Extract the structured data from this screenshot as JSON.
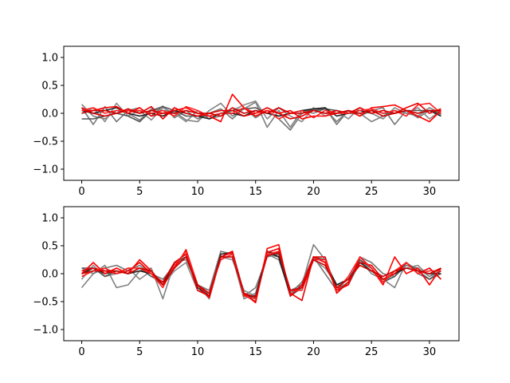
{
  "chart_data": [
    {
      "type": "line",
      "title": "",
      "xlabel": "",
      "ylabel": "",
      "xlim": [
        -1.55,
        32.55
      ],
      "ylim": [
        -1.2,
        1.2
      ],
      "xticks": [
        0,
        5,
        10,
        15,
        20,
        25,
        30
      ],
      "xtick_labels": [
        "0",
        "5",
        "10",
        "15",
        "20",
        "25",
        "30"
      ],
      "yticks": [
        -1.0,
        -0.5,
        0.0,
        0.5,
        1.0
      ],
      "ytick_labels": [
        "−1.0",
        "−0.5",
        "0.0",
        "0.5",
        "1.0"
      ],
      "grid": false,
      "x": [
        0,
        1,
        2,
        3,
        4,
        5,
        6,
        7,
        8,
        9,
        10,
        11,
        12,
        13,
        14,
        15,
        16,
        17,
        18,
        19,
        20,
        21,
        22,
        23,
        24,
        25,
        26,
        27,
        28,
        29,
        30,
        31
      ],
      "series": [
        {
          "color": "#808080",
          "values": [
            0.16,
            -0.05,
            -0.1,
            0.05,
            0.0,
            -0.12,
            0.08,
            0.05,
            0.03,
            -0.12,
            -0.15,
            0.05,
            0.18,
            -0.05,
            0.08,
            0.2,
            -0.25,
            0.05,
            -0.25,
            0.05,
            0.0,
            0.08,
            -0.15,
            0.05,
            0.0,
            -0.15,
            -0.05,
            0.05,
            0.0,
            -0.05,
            0.1,
            0.0
          ]
        },
        {
          "color": "#777777",
          "values": [
            0.1,
            -0.2,
            0.12,
            -0.15,
            0.05,
            0.1,
            -0.05,
            0.13,
            -0.08,
            0.05,
            -0.1,
            0.0,
            0.08,
            -0.1,
            0.1,
            -0.08,
            0.05,
            -0.1,
            -0.3,
            0.0,
            0.05,
            0.1,
            -0.2,
            0.05,
            -0.05,
            0.05,
            0.1,
            -0.2,
            0.05,
            -0.08,
            0.05,
            -0.02
          ]
        },
        {
          "color": "#8a8a8a",
          "values": [
            0.0,
            0.1,
            -0.15,
            0.18,
            -0.05,
            0.05,
            -0.12,
            0.1,
            0.0,
            -0.15,
            0.05,
            -0.1,
            -0.05,
            0.05,
            0.15,
            0.22,
            -0.1,
            0.1,
            -0.05,
            -0.15,
            0.1,
            -0.05,
            0.05,
            -0.1,
            0.1,
            0.0,
            -0.1,
            0.1,
            0.0,
            0.1,
            -0.1,
            0.05
          ]
        },
        {
          "color": "#555555",
          "values": [
            -0.1,
            -0.1,
            -0.05,
            0.0,
            -0.05,
            -0.15,
            0.05,
            0.12,
            0.05,
            -0.05,
            -0.05,
            -0.05,
            0.0,
            0.05,
            0.08,
            0.1,
            0.0,
            -0.05,
            0.0,
            0.05,
            0.05,
            0.08,
            0.05,
            0.0,
            0.0,
            0.05,
            0.0,
            0.0,
            0.05,
            0.05,
            0.05,
            0.0
          ]
        },
        {
          "color": "#222222",
          "values": [
            0.05,
            0.0,
            0.05,
            0.1,
            0.0,
            -0.05,
            0.0,
            -0.05,
            0.05,
            0.0,
            -0.05,
            -0.1,
            0.0,
            0.0,
            -0.05,
            0.05,
            0.0,
            -0.05,
            0.0,
            0.05,
            0.08,
            0.1,
            -0.05,
            0.0,
            0.05,
            0.0,
            0.05,
            0.0,
            0.05,
            0.0,
            0.05,
            -0.05
          ]
        },
        {
          "color": "#ff0000",
          "values": [
            0.05,
            0.05,
            0.1,
            0.12,
            0.0,
            0.1,
            -0.05,
            0.0,
            0.05,
            0.1,
            0.0,
            -0.05,
            -0.15,
            0.34,
            0.1,
            -0.05,
            0.05,
            0.0,
            0.05,
            -0.1,
            -0.05,
            -0.05,
            0.0,
            0.05,
            -0.05,
            0.1,
            0.12,
            0.15,
            0.05,
            -0.05,
            -0.15,
            0.05
          ]
        },
        {
          "color": "#e60000",
          "values": [
            0.1,
            0.0,
            -0.05,
            0.0,
            0.05,
            0.0,
            0.12,
            -0.1,
            0.1,
            0.0,
            -0.05,
            0.0,
            0.05,
            0.05,
            -0.05,
            0.0,
            0.1,
            0.0,
            -0.1,
            -0.05,
            0.05,
            0.0,
            0.05,
            0.0,
            0.1,
            0.0,
            0.05,
            0.0,
            0.1,
            0.18,
            0.0,
            0.08
          ]
        },
        {
          "color": "#ff2020",
          "values": [
            0.05,
            0.1,
            0.0,
            0.05,
            0.05,
            0.05,
            0.0,
            0.05,
            -0.05,
            0.12,
            0.05,
            -0.05,
            0.0,
            0.0,
            0.1,
            0.0,
            0.05,
            -0.1,
            0.0,
            0.05,
            -0.08,
            0.05,
            0.0,
            0.0,
            0.05,
            0.08,
            0.0,
            0.05,
            -0.05,
            0.15,
            0.18,
            0.0
          ]
        },
        {
          "color": "#d00000",
          "values": [
            0.0,
            0.05,
            0.05,
            0.0,
            0.08,
            0.0,
            0.05,
            0.0,
            0.0,
            0.05,
            0.0,
            0.0,
            -0.05,
            0.1,
            0.0,
            0.05,
            0.0,
            0.1,
            0.0,
            0.0,
            0.05,
            0.0,
            0.0,
            0.05,
            0.0,
            0.05,
            -0.05,
            0.0,
            0.05,
            0.0,
            0.05,
            0.05
          ]
        }
      ]
    },
    {
      "type": "line",
      "title": "",
      "xlabel": "",
      "ylabel": "",
      "xlim": [
        -1.55,
        32.55
      ],
      "ylim": [
        -1.2,
        1.2
      ],
      "xticks": [
        0,
        5,
        10,
        15,
        20,
        25,
        30
      ],
      "xtick_labels": [
        "0",
        "5",
        "10",
        "15",
        "20",
        "25",
        "30"
      ],
      "yticks": [
        -1.0,
        -0.5,
        0.0,
        0.5,
        1.0
      ],
      "ytick_labels": [
        "−1.0",
        "−0.5",
        "0.0",
        "0.5",
        "1.0"
      ],
      "grid": false,
      "x": [
        0,
        1,
        2,
        3,
        4,
        5,
        6,
        7,
        8,
        9,
        10,
        11,
        12,
        13,
        14,
        15,
        16,
        17,
        18,
        19,
        20,
        21,
        22,
        23,
        24,
        25,
        26,
        27,
        28,
        29,
        30,
        31
      ],
      "series": [
        {
          "color": "#808080",
          "values": [
            -0.25,
            0.0,
            0.15,
            -0.25,
            -0.2,
            0.05,
            0.1,
            -0.45,
            0.2,
            0.25,
            -0.2,
            -0.45,
            0.3,
            0.3,
            -0.45,
            -0.35,
            0.35,
            0.3,
            -0.3,
            -0.2,
            0.52,
            0.25,
            -0.25,
            -0.1,
            0.25,
            0.0,
            -0.1,
            -0.25,
            0.2,
            0.0,
            -0.1,
            0.0
          ]
        },
        {
          "color": "#777777",
          "values": [
            0.1,
            0.0,
            0.1,
            0.15,
            0.05,
            0.15,
            0.0,
            -0.1,
            0.15,
            0.3,
            -0.2,
            -0.3,
            0.4,
            0.35,
            -0.4,
            -0.25,
            0.3,
            0.35,
            -0.35,
            -0.15,
            0.3,
            0.0,
            -0.3,
            -0.15,
            0.3,
            0.2,
            0.0,
            -0.05,
            0.15,
            0.1,
            -0.05,
            0.05
          ]
        },
        {
          "color": "#8a8a8a",
          "values": [
            -0.1,
            0.15,
            -0.05,
            0.0,
            0.1,
            -0.1,
            0.05,
            -0.2,
            0.05,
            0.2,
            -0.3,
            -0.35,
            0.3,
            0.25,
            -0.3,
            -0.4,
            0.35,
            0.25,
            -0.35,
            -0.25,
            0.25,
            0.1,
            -0.2,
            -0.2,
            0.2,
            0.1,
            -0.15,
            0.0,
            0.1,
            0.15,
            -0.05,
            0.1
          ]
        },
        {
          "color": "#555555",
          "values": [
            0.1,
            0.1,
            -0.05,
            0.05,
            0.0,
            0.1,
            -0.05,
            -0.15,
            0.2,
            0.3,
            -0.2,
            -0.4,
            0.3,
            0.4,
            -0.35,
            -0.45,
            0.4,
            0.35,
            -0.4,
            -0.25,
            0.3,
            0.25,
            -0.25,
            -0.2,
            0.25,
            0.1,
            -0.15,
            -0.05,
            0.2,
            0.05,
            -0.1,
            0.05
          ]
        },
        {
          "color": "#222222",
          "values": [
            0.0,
            0.1,
            0.0,
            0.05,
            0.0,
            0.05,
            0.0,
            -0.2,
            0.2,
            0.35,
            -0.25,
            -0.4,
            0.35,
            0.38,
            -0.4,
            -0.4,
            0.4,
            0.3,
            -0.4,
            -0.2,
            0.3,
            0.2,
            -0.2,
            -0.1,
            0.2,
            0.05,
            -0.1,
            0.0,
            0.1,
            0.05,
            0.0,
            0.0
          ]
        },
        {
          "color": "#ff0000",
          "values": [
            0.0,
            0.2,
            0.0,
            0.1,
            0.0,
            0.25,
            0.05,
            -0.2,
            0.1,
            0.43,
            -0.2,
            -0.43,
            0.3,
            0.38,
            -0.35,
            -0.52,
            0.45,
            0.52,
            -0.4,
            -0.2,
            0.3,
            0.2,
            -0.3,
            -0.2,
            0.3,
            0.1,
            -0.2,
            0.3,
            0.0,
            0.1,
            -0.2,
            0.1
          ]
        },
        {
          "color": "#e60000",
          "values": [
            0.05,
            0.1,
            0.05,
            0.0,
            0.05,
            0.2,
            0.0,
            -0.15,
            0.2,
            0.35,
            -0.3,
            -0.4,
            0.3,
            0.4,
            -0.38,
            -0.5,
            0.38,
            0.45,
            -0.35,
            -0.48,
            0.3,
            0.3,
            -0.35,
            -0.15,
            0.2,
            0.15,
            -0.1,
            0.0,
            0.2,
            0.0,
            0.1,
            -0.1
          ]
        },
        {
          "color": "#ff2020",
          "values": [
            -0.05,
            0.05,
            0.1,
            0.0,
            0.1,
            0.1,
            0.0,
            -0.25,
            0.15,
            0.4,
            -0.2,
            -0.35,
            0.25,
            0.35,
            -0.4,
            -0.45,
            0.35,
            0.4,
            -0.3,
            -0.3,
            0.25,
            0.25,
            -0.3,
            -0.05,
            0.3,
            0.1,
            -0.15,
            0.05,
            0.2,
            0.0,
            0.05,
            0.05
          ]
        },
        {
          "color": "#d00000",
          "values": [
            0.0,
            0.05,
            0.05,
            0.05,
            0.0,
            0.1,
            0.05,
            -0.2,
            0.1,
            0.3,
            -0.2,
            -0.35,
            0.3,
            0.3,
            -0.35,
            -0.42,
            0.32,
            0.38,
            -0.3,
            -0.25,
            0.25,
            0.15,
            -0.25,
            -0.1,
            0.15,
            0.05,
            -0.05,
            0.05,
            0.1,
            0.05,
            0.0,
            0.1
          ]
        }
      ]
    }
  ]
}
